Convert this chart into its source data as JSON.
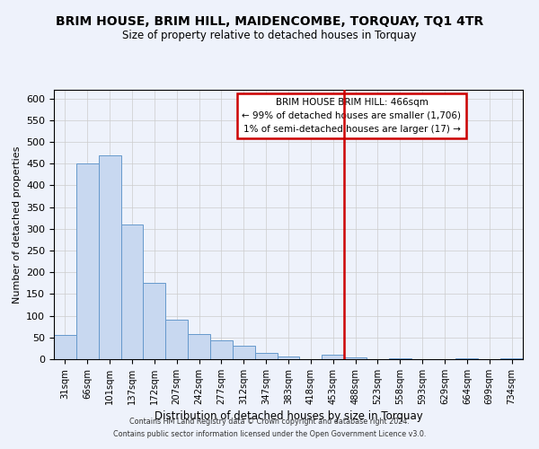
{
  "title": "BRIM HOUSE, BRIM HILL, MAIDENCOMBE, TORQUAY, TQ1 4TR",
  "subtitle": "Size of property relative to detached houses in Torquay",
  "xlabel": "Distribution of detached houses by size in Torquay",
  "ylabel": "Number of detached properties",
  "bar_labels": [
    "31sqm",
    "66sqm",
    "101sqm",
    "137sqm",
    "172sqm",
    "207sqm",
    "242sqm",
    "277sqm",
    "312sqm",
    "347sqm",
    "383sqm",
    "418sqm",
    "453sqm",
    "488sqm",
    "523sqm",
    "558sqm",
    "593sqm",
    "629sqm",
    "664sqm",
    "699sqm",
    "734sqm"
  ],
  "bar_values": [
    55,
    450,
    470,
    310,
    175,
    90,
    58,
    43,
    32,
    15,
    7,
    0,
    10,
    5,
    0,
    3,
    0,
    0,
    2,
    0,
    2
  ],
  "bar_color": "#c8d8f0",
  "bar_edge_color": "#6699cc",
  "vline_index": 12,
  "vline_color": "#cc0000",
  "annotation_title": "BRIM HOUSE BRIM HILL: 466sqm",
  "annotation_line1": "← 99% of detached houses are smaller (1,706)",
  "annotation_line2": "1% of semi-detached houses are larger (17) →",
  "annotation_box_color": "#ffffff",
  "annotation_box_edge": "#cc0000",
  "ylim": [
    0,
    620
  ],
  "yticks": [
    0,
    50,
    100,
    150,
    200,
    250,
    300,
    350,
    400,
    450,
    500,
    550,
    600
  ],
  "footer_line1": "Contains HM Land Registry data © Crown copyright and database right 2024.",
  "footer_line2": "Contains public sector information licensed under the Open Government Licence v3.0.",
  "bg_color": "#eef2fb",
  "plot_bg_color": "#eef2fb",
  "grid_color": "#cccccc"
}
